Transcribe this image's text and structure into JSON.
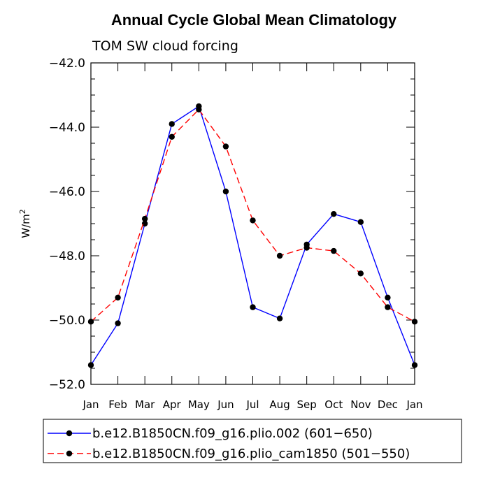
{
  "chart_data": {
    "type": "line",
    "title": "Annual Cycle Global Mean Climatology",
    "subtitle": "TOM SW cloud forcing",
    "xlabel": "",
    "ylabel": "W/m",
    "ylabel_superscript": "2",
    "ylim": [
      -52.0,
      -42.0
    ],
    "y_major_ticks": [
      -52.0,
      -50.0,
      -48.0,
      -46.0,
      -44.0,
      -42.0
    ],
    "y_tick_labels": [
      "−52.0",
      "−50.0",
      "−48.0",
      "−46.0",
      "−44.0",
      "−42.0"
    ],
    "categories": [
      "Jan",
      "Feb",
      "Mar",
      "Apr",
      "May",
      "Jun",
      "Jul",
      "Aug",
      "Sep",
      "Oct",
      "Nov",
      "Dec",
      "Jan"
    ],
    "series": [
      {
        "name": "b.e12.B1850CN.f09_g16.plio.002 (601−650)",
        "color": "#0000ff",
        "dash": "solid",
        "values": [
          -51.4,
          -50.1,
          -47.0,
          -43.9,
          -43.35,
          -46.0,
          -49.6,
          -49.95,
          -47.65,
          -46.7,
          -46.95,
          -49.3,
          -51.4
        ]
      },
      {
        "name": "b.e12.B1850CN.f09_g16.plio_cam1850 (501−550)",
        "color": "#ff0000",
        "dash": "dashed",
        "values": [
          -50.05,
          -49.3,
          -46.85,
          -44.3,
          -43.45,
          -44.6,
          -46.9,
          -48.0,
          -47.75,
          -47.85,
          -48.55,
          -49.6,
          -50.05
        ]
      }
    ],
    "marker_color": "#000000"
  }
}
